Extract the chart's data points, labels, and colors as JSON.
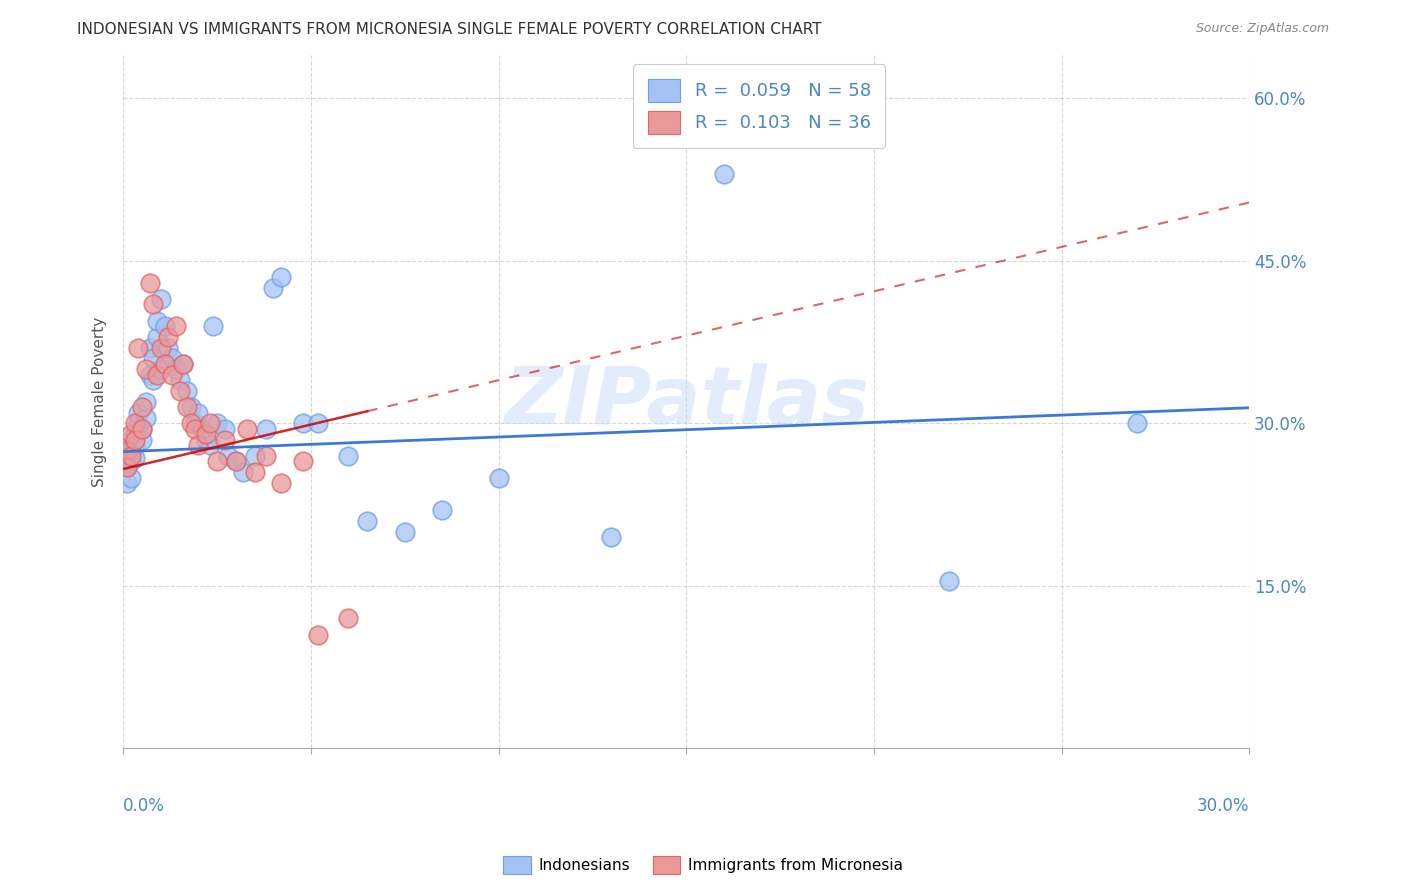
{
  "title": "INDONESIAN VS IMMIGRANTS FROM MICRONESIA SINGLE FEMALE POVERTY CORRELATION CHART",
  "source": "Source: ZipAtlas.com",
  "ylabel": "Single Female Poverty",
  "y_ticks": [
    0.0,
    0.15,
    0.3,
    0.45,
    0.6
  ],
  "y_tick_labels": [
    "",
    "15.0%",
    "30.0%",
    "45.0%",
    "60.0%"
  ],
  "xlim": [
    0.0,
    0.3
  ],
  "ylim": [
    0.0,
    0.64
  ],
  "watermark": "ZIPatlas",
  "blue_color": "#a4c2f4",
  "pink_color": "#ea9999",
  "blue_edge_color": "#6d9eeb",
  "pink_edge_color": "#e06666",
  "blue_line_color": "#3c78d8",
  "pink_line_color": "#cc0000",
  "axis_label_color": "#4a86c8",
  "grid_color": "#cccccc",
  "indonesian_x": [
    0.001,
    0.001,
    0.001,
    0.002,
    0.002,
    0.002,
    0.002,
    0.003,
    0.003,
    0.003,
    0.004,
    0.004,
    0.005,
    0.005,
    0.006,
    0.006,
    0.007,
    0.007,
    0.008,
    0.008,
    0.009,
    0.009,
    0.01,
    0.01,
    0.011,
    0.012,
    0.013,
    0.014,
    0.015,
    0.016,
    0.017,
    0.018,
    0.019,
    0.02,
    0.021,
    0.022,
    0.023,
    0.024,
    0.025,
    0.027,
    0.028,
    0.03,
    0.032,
    0.035,
    0.038,
    0.04,
    0.042,
    0.048,
    0.052,
    0.06,
    0.065,
    0.075,
    0.085,
    0.1,
    0.13,
    0.16,
    0.22,
    0.27
  ],
  "indonesian_y": [
    0.27,
    0.26,
    0.245,
    0.285,
    0.275,
    0.265,
    0.25,
    0.29,
    0.28,
    0.268,
    0.3,
    0.31,
    0.295,
    0.285,
    0.32,
    0.305,
    0.37,
    0.345,
    0.36,
    0.34,
    0.38,
    0.395,
    0.415,
    0.35,
    0.39,
    0.37,
    0.36,
    0.35,
    0.34,
    0.355,
    0.33,
    0.315,
    0.3,
    0.31,
    0.295,
    0.285,
    0.28,
    0.39,
    0.3,
    0.295,
    0.27,
    0.265,
    0.255,
    0.27,
    0.295,
    0.425,
    0.435,
    0.3,
    0.3,
    0.27,
    0.21,
    0.2,
    0.22,
    0.25,
    0.195,
    0.53,
    0.155,
    0.3
  ],
  "micronesia_x": [
    0.001,
    0.001,
    0.002,
    0.002,
    0.003,
    0.003,
    0.004,
    0.005,
    0.005,
    0.006,
    0.007,
    0.008,
    0.009,
    0.01,
    0.011,
    0.012,
    0.013,
    0.014,
    0.015,
    0.016,
    0.017,
    0.018,
    0.019,
    0.02,
    0.022,
    0.023,
    0.025,
    0.027,
    0.03,
    0.033,
    0.035,
    0.038,
    0.042,
    0.048,
    0.052,
    0.06
  ],
  "micronesia_y": [
    0.275,
    0.26,
    0.29,
    0.27,
    0.3,
    0.285,
    0.37,
    0.315,
    0.295,
    0.35,
    0.43,
    0.41,
    0.345,
    0.37,
    0.355,
    0.38,
    0.345,
    0.39,
    0.33,
    0.355,
    0.315,
    0.3,
    0.295,
    0.28,
    0.29,
    0.3,
    0.265,
    0.285,
    0.265,
    0.295,
    0.255,
    0.27,
    0.245,
    0.265,
    0.105,
    0.12
  ],
  "blue_intercept": 0.274,
  "blue_slope": 0.135,
  "pink_intercept": 0.258,
  "pink_slope": 0.82
}
